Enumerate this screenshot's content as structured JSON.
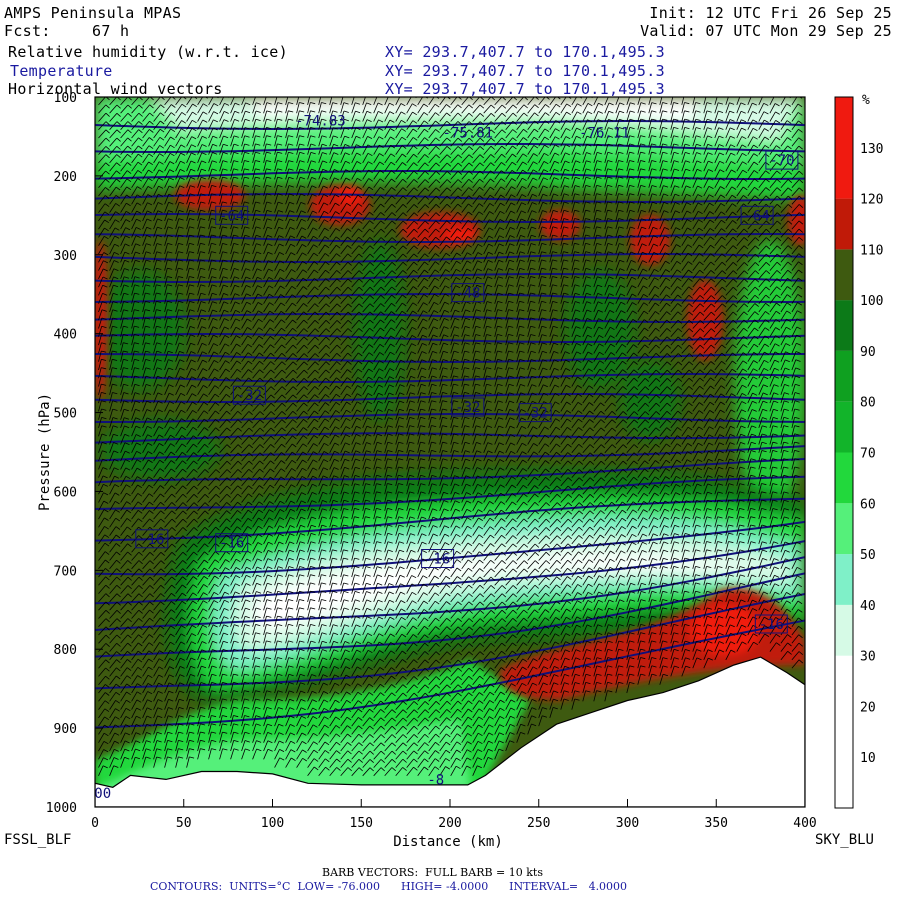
{
  "header": {
    "model": "AMPS Peninsula MPAS",
    "fcst_label": "Fcst:",
    "fcst_value": "67 h",
    "init": "Init: 12 UTC Fri 26 Sep 25",
    "valid": "Valid: 07 UTC Mon 29 Sep 25",
    "field1": "Relative humidity (w.r.t. ice)",
    "field2": "Temperature",
    "field3": "Horizontal wind vectors",
    "xy1": "XY= 293.7,407.7 to 170.1,495.3",
    "xy2": "XY= 293.7,407.7 to 170.1,495.3",
    "xy3": "XY= 293.7,407.7 to 170.1,495.3"
  },
  "footer": {
    "left_station": "FSSL_BLF",
    "right_station": "SKY_BLU",
    "barb_note": "BARB VECTORS:  FULL BARB = 10 kts",
    "contour_note": "CONTOURS:  UNITS=°C  LOW= -76.000      HIGH= -4.0000      INTERVAL=   4.0000"
  },
  "colors": {
    "rh_white": "#ffffff",
    "rh_pale_cyan": "#d6fae6",
    "rh_aqua": "#7ff0c8",
    "rh_light_green": "#55f07a",
    "rh_green": "#22d83c",
    "rh_mid_green": "#12b42a",
    "rh_dark_green": "#0c7a18",
    "rh_olive": "#3e5a10",
    "rh_dark_red": "#c01a08",
    "rh_red": "#f01a10",
    "contour": "#10107a",
    "terrain": "#ffffff"
  },
  "chart_data": {
    "type": "cross-section",
    "x_axis": {
      "label": "Distance (km)",
      "range": [
        0,
        400
      ],
      "ticks": [
        0,
        50,
        100,
        150,
        200,
        250,
        300,
        350,
        400
      ]
    },
    "y_axis": {
      "label": "Pressure (hPa)",
      "range": [
        1000,
        100
      ],
      "ticks": [
        100,
        200,
        300,
        400,
        500,
        600,
        700,
        800,
        900,
        1000
      ]
    },
    "colorbar": {
      "unit": "%",
      "ticks": [
        10,
        20,
        30,
        40,
        50,
        60,
        70,
        80,
        90,
        100,
        110,
        120,
        130
      ],
      "bins": [
        {
          "from": 0,
          "to": 10,
          "color": "#ffffff"
        },
        {
          "from": 10,
          "to": 20,
          "color": "#ffffff"
        },
        {
          "from": 20,
          "to": 30,
          "color": "#ffffff"
        },
        {
          "from": 30,
          "to": 40,
          "color": "#d6fae6"
        },
        {
          "from": 40,
          "to": 50,
          "color": "#7ff0c8"
        },
        {
          "from": 50,
          "to": 60,
          "color": "#55f07a"
        },
        {
          "from": 60,
          "to": 70,
          "color": "#22d83c"
        },
        {
          "from": 70,
          "to": 80,
          "color": "#12b42a"
        },
        {
          "from": 80,
          "to": 90,
          "color": "#0fa020"
        },
        {
          "from": 90,
          "to": 100,
          "color": "#0c7a18"
        },
        {
          "from": 100,
          "to": 110,
          "color": "#3e5a10"
        },
        {
          "from": 110,
          "to": 120,
          "color": "#c01a08"
        },
        {
          "from": 120,
          "to": 140,
          "color": "#f01a10"
        }
      ]
    },
    "terrain_profile": [
      [
        0,
        970
      ],
      [
        10,
        975
      ],
      [
        20,
        960
      ],
      [
        40,
        965
      ],
      [
        60,
        955
      ],
      [
        80,
        955
      ],
      [
        100,
        958
      ],
      [
        120,
        970
      ],
      [
        150,
        972
      ],
      [
        180,
        972
      ],
      [
        210,
        972
      ],
      [
        220,
        960
      ],
      [
        240,
        925
      ],
      [
        260,
        895
      ],
      [
        280,
        880
      ],
      [
        300,
        865
      ],
      [
        320,
        855
      ],
      [
        340,
        840
      ],
      [
        360,
        820
      ],
      [
        375,
        810
      ],
      [
        390,
        830
      ],
      [
        400,
        845
      ]
    ],
    "temperature_contours": [
      {
        "label": "-74.83",
        "x": 127,
        "p": 130
      },
      {
        "label": "-75.81",
        "x": 210,
        "p": 145
      },
      {
        "label": "-76.11",
        "x": 287,
        "p": 145
      },
      {
        "label": "-70",
        "x": 387,
        "p": 180
      },
      {
        "label": "-64",
        "x": 77,
        "p": 250
      },
      {
        "label": "-64",
        "x": 373,
        "p": 250
      },
      {
        "label": "-48",
        "x": 210,
        "p": 348
      },
      {
        "label": "-32",
        "x": 87,
        "p": 478
      },
      {
        "label": "-32",
        "x": 210,
        "p": 493
      },
      {
        "label": "-32",
        "x": 248,
        "p": 500
      },
      {
        "label": "-16",
        "x": 32,
        "p": 660
      },
      {
        "label": "-16",
        "x": 77,
        "p": 665
      },
      {
        "label": "-16",
        "x": 193,
        "p": 685
      },
      {
        "label": "-16",
        "x": 381,
        "p": 768
      }
    ],
    "terrain_labels": [
      {
        "label": ".00",
        "x": 2,
        "p": 982
      },
      {
        "label": "-8",
        "x": 192,
        "p": 965
      }
    ]
  }
}
